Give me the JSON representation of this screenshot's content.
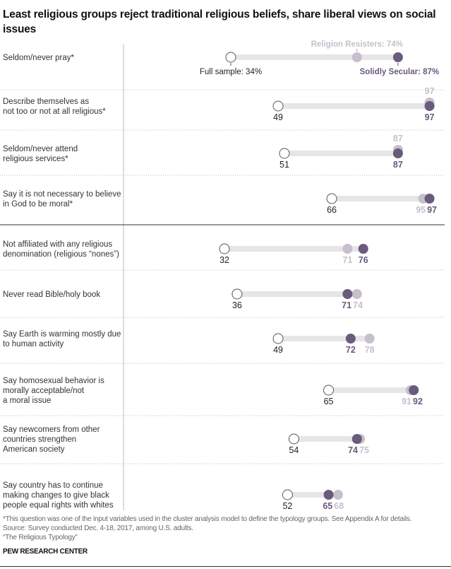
{
  "title": "Least religious groups reject traditional religious beliefs, share liberal views on social issues",
  "chart_data": {
    "type": "dot-range",
    "xlim": [
      0,
      100
    ],
    "unit": "%",
    "series": [
      {
        "name": "Full sample",
        "color": "#ffffff",
        "values": [
          34,
          49,
          51,
          66,
          32,
          36,
          49,
          65,
          54,
          52
        ]
      },
      {
        "name": "Religion Resisters",
        "color": "#c7bfcc",
        "values": [
          74,
          97,
          87,
          95,
          71,
          74,
          78,
          91,
          75,
          68
        ]
      },
      {
        "name": "Solidly Secular",
        "color": "#6a5a7c",
        "values": [
          87,
          97,
          87,
          97,
          76,
          71,
          72,
          92,
          74,
          65
        ]
      }
    ],
    "legend_labels": {
      "full": "Full sample: 34%",
      "rr": "Religion Resisters: 74%",
      "ss": "Solidly Secular: 87%"
    },
    "categories": [
      [
        "Seldom/never pray*"
      ],
      [
        "Describe themselves as",
        "not too or not at all religious*"
      ],
      [
        "Seldom/never attend",
        "religious services*"
      ],
      [
        "Say it is not necessary to believe",
        "in God to be moral*"
      ],
      [
        "Not affiliated with any religious",
        "denomination (religious “nones”)"
      ],
      [
        "Never read Bible/holy book"
      ],
      [
        "Say Earth is warming mostly due",
        "to human activity"
      ],
      [
        "Say homosexual behavior is",
        "morally acceptable/not",
        "a moral issue"
      ],
      [
        "Say newcomers from other",
        "countries strengthen",
        "American society"
      ],
      [
        "Say country has to continue",
        "making changes to give black",
        "people equal rights with whites"
      ]
    ],
    "bar_color": "#e6e6e6"
  },
  "notes": {
    "footnote": "*This question was one of the input variables used in the cluster analysis model to define the typology groups. See Appendix A for details.",
    "source": "Source: Survey conducted Dec. 4-18, 2017, among U.S. adults.",
    "report": "“The Religious Typology”"
  },
  "brand": "PEW RESEARCH CENTER"
}
